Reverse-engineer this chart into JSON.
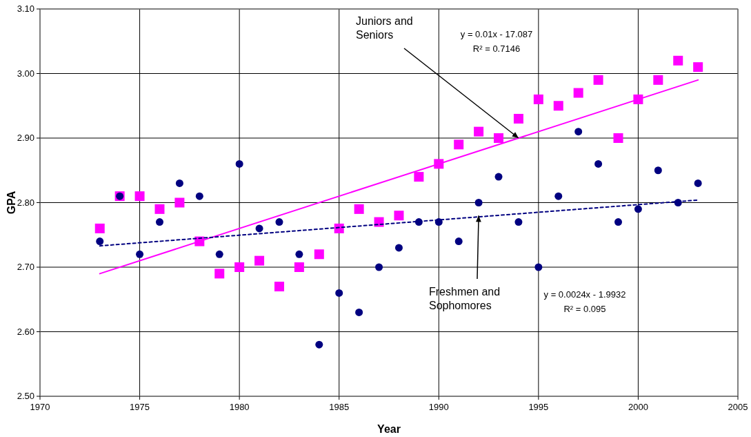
{
  "chart_data": {
    "type": "scatter",
    "xlabel": "Year",
    "ylabel": "GPA",
    "x": [
      1973,
      1974,
      1975,
      1976,
      1977,
      1978,
      1979,
      1980,
      1981,
      1982,
      1983,
      1984,
      1985,
      1986,
      1987,
      1988,
      1989,
      1990,
      1991,
      1992,
      1993,
      1994,
      1995,
      1996,
      1997,
      1998,
      1999,
      2000,
      2001,
      2002,
      2003
    ],
    "series": [
      {
        "marker": "square",
        "color": "#ff00ff",
        "values": [
          2.76,
          2.81,
          2.81,
          2.79,
          2.8,
          2.74,
          2.69,
          2.7,
          2.71,
          2.67,
          2.7,
          2.72,
          2.76,
          2.79,
          2.77,
          2.78,
          2.84,
          2.86,
          2.89,
          2.91,
          2.9,
          2.93,
          2.96,
          2.95,
          2.97,
          2.99,
          2.9,
          2.96,
          2.99,
          3.02,
          3.01
        ]
      },
      {
        "marker": "circle",
        "color": "#000080",
        "values": [
          2.74,
          2.81,
          2.72,
          2.77,
          2.83,
          2.81,
          2.72,
          2.86,
          2.76,
          2.77,
          2.72,
          2.58,
          2.66,
          2.63,
          2.7,
          2.73,
          2.77,
          2.77,
          2.74,
          2.8,
          2.84,
          2.77,
          2.7,
          2.81,
          2.91,
          2.86,
          2.77,
          2.79,
          2.85,
          2.8,
          2.83
        ]
      },
      {
        "type": "line",
        "line_style": "solid",
        "color": "#ff00ff",
        "values": [
          2.69,
          null,
          null,
          null,
          null,
          null,
          null,
          null,
          null,
          null,
          null,
          null,
          null,
          null,
          null,
          null,
          null,
          null,
          null,
          null,
          null,
          null,
          null,
          null,
          null,
          null,
          null,
          null,
          null,
          null,
          2.99
        ]
      },
      {
        "type": "line",
        "line_style": "dashed",
        "color": "#000080",
        "values": [
          2.733,
          null,
          null,
          null,
          null,
          null,
          null,
          null,
          null,
          null,
          null,
          null,
          null,
          null,
          null,
          null,
          null,
          null,
          null,
          null,
          null,
          null,
          null,
          null,
          null,
          null,
          null,
          null,
          null,
          null,
          2.804
        ]
      }
    ],
    "xlim": [
      1970,
      2005
    ],
    "xticks": [
      1970,
      1975,
      1980,
      1985,
      1990,
      1995,
      2000,
      2005
    ],
    "ylim": [
      2.5,
      3.1
    ],
    "yticks": [
      {
        "value": 2.5,
        "label": "2.50"
      },
      {
        "value": 2.6,
        "label": "2.60"
      },
      {
        "value": 2.7,
        "label": "2.70"
      },
      {
        "value": 2.8,
        "label": "2.80"
      },
      {
        "value": 2.9,
        "label": "2.90"
      },
      {
        "value": 3.0,
        "label": "3.00"
      },
      {
        "value": 3.1,
        "label": "3.10"
      }
    ],
    "grid": true,
    "annotations": [
      {
        "text": "Juniors and Seniors",
        "x": 1994,
        "y": 2.9
      },
      {
        "text": "Freshmen and Sophomores",
        "x": 1992,
        "y": 2.78
      },
      "y = 0.01x - 17.087",
      "R² = 0.7146",
      "y = 0.0024x - 1.9932",
      "R² = 0.095"
    ]
  }
}
